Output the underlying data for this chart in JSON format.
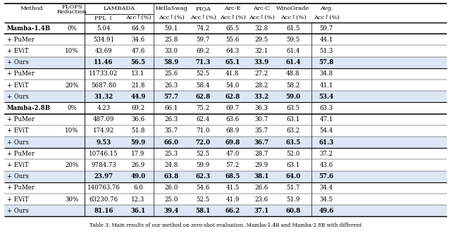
{
  "caption": "Table 3: Main results of our method on zero-shot evaluation. Mamba-1.4B and Mamba-2.8B with different",
  "highlight_color": "#dce6f5",
  "rows": [
    {
      "method": "Mamba-1.4B",
      "reduction": "0%",
      "ppl": "5.04",
      "lacc": "64.9",
      "hella": "59.1",
      "piqa": "74.2",
      "arce": "65.5",
      "arcc": "32.8",
      "wino": "61.5",
      "avg": "59.7",
      "hl": false,
      "baseline": true,
      "grp_mid": false
    },
    {
      "method": "+ PuMer",
      "reduction": "",
      "ppl": "534.91",
      "lacc": "34.6",
      "hella": "25.8",
      "piqa": "59.7",
      "arce": "55.6",
      "arcc": "29.5",
      "wino": "59.5",
      "avg": "44.1",
      "hl": false,
      "baseline": false,
      "grp_mid": false
    },
    {
      "method": "+ EViT",
      "reduction": "10%",
      "ppl": "43.69",
      "lacc": "47.6",
      "hella": "33.0",
      "piqa": "69.2",
      "arce": "64.3",
      "arcc": "32.1",
      "wino": "61.4",
      "avg": "51.3",
      "hl": false,
      "baseline": false,
      "grp_mid": true
    },
    {
      "method": "+ Ours",
      "reduction": "",
      "ppl": "11.46",
      "lacc": "56.5",
      "hella": "58.9",
      "piqa": "71.3",
      "arce": "65.1",
      "arcc": "33.9",
      "wino": "61.4",
      "avg": "57.8",
      "hl": true,
      "baseline": false,
      "grp_mid": false
    },
    {
      "method": "+ PuMer",
      "reduction": "",
      "ppl": "11733.02",
      "lacc": "13.1",
      "hella": "25.6",
      "piqa": "52.5",
      "arce": "41.8",
      "arcc": "27.2",
      "wino": "48.8",
      "avg": "34.8",
      "hl": false,
      "baseline": false,
      "grp_mid": false
    },
    {
      "method": "+ EViT",
      "reduction": "20%",
      "ppl": "5687.80",
      "lacc": "21.8",
      "hella": "26.3",
      "piqa": "58.4",
      "arce": "54.0",
      "arcc": "28.2",
      "wino": "58.2",
      "avg": "41.1",
      "hl": false,
      "baseline": false,
      "grp_mid": true
    },
    {
      "method": "+ Ours",
      "reduction": "",
      "ppl": "31.32",
      "lacc": "44.9",
      "hella": "57.7",
      "piqa": "62.8",
      "arce": "62.8",
      "arcc": "33.2",
      "wino": "59.0",
      "avg": "53.4",
      "hl": true,
      "baseline": false,
      "grp_mid": false
    },
    {
      "method": "Mamba-2.8B",
      "reduction": "0%",
      "ppl": "4.23",
      "lacc": "69.2",
      "hella": "66.1",
      "piqa": "75.2",
      "arce": "69.7",
      "arcc": "36.3",
      "wino": "63.5",
      "avg": "63.3",
      "hl": false,
      "baseline": true,
      "grp_mid": false
    },
    {
      "method": "+ PuMer",
      "reduction": "",
      "ppl": "487.09",
      "lacc": "36.6",
      "hella": "26.3",
      "piqa": "62.4",
      "arce": "63.6",
      "arcc": "30.7",
      "wino": "63.1",
      "avg": "47.1",
      "hl": false,
      "baseline": false,
      "grp_mid": false
    },
    {
      "method": "+ EViT",
      "reduction": "10%",
      "ppl": "174.92",
      "lacc": "51.8",
      "hella": "35.7",
      "piqa": "71.0",
      "arce": "68.9",
      "arcc": "35.7",
      "wino": "63.2",
      "avg": "54.4",
      "hl": false,
      "baseline": false,
      "grp_mid": true
    },
    {
      "method": "+ Ours",
      "reduction": "",
      "ppl": "9.53",
      "lacc": "59.9",
      "hella": "66.0",
      "piqa": "72.0",
      "arce": "69.8",
      "arcc": "36.7",
      "wino": "63.5",
      "avg": "61.3",
      "hl": true,
      "baseline": false,
      "grp_mid": false
    },
    {
      "method": "+ PuMer",
      "reduction": "",
      "ppl": "10746.15",
      "lacc": "17.9",
      "hella": "25.3",
      "piqa": "52.5",
      "arce": "47.0",
      "arcc": "28.7",
      "wino": "52.0",
      "avg": "37.2",
      "hl": false,
      "baseline": false,
      "grp_mid": false
    },
    {
      "method": "+ EViT",
      "reduction": "20%",
      "ppl": "9784.73",
      "lacc": "26.9",
      "hella": "24.8",
      "piqa": "59.9",
      "arce": "57.2",
      "arcc": "29.9",
      "wino": "63.1",
      "avg": "43.6",
      "hl": false,
      "baseline": false,
      "grp_mid": true
    },
    {
      "method": "+ Ours",
      "reduction": "",
      "ppl": "23.97",
      "lacc": "49.0",
      "hella": "63.8",
      "piqa": "62.3",
      "arce": "68.5",
      "arcc": "38.1",
      "wino": "64.0",
      "avg": "57.6",
      "hl": true,
      "baseline": false,
      "grp_mid": false
    },
    {
      "method": "+ PuMer",
      "reduction": "",
      "ppl": "140763.76",
      "lacc": "6.0",
      "hella": "26.0",
      "piqa": "54.6",
      "arce": "41.5",
      "arcc": "26.6",
      "wino": "51.7",
      "avg": "34.4",
      "hl": false,
      "baseline": false,
      "grp_mid": false
    },
    {
      "method": "+ EViT",
      "reduction": "30%",
      "ppl": "63230.76",
      "lacc": "12.3",
      "hella": "25.0",
      "piqa": "52.5",
      "arce": "41.9",
      "arcc": "23.6",
      "wino": "51.9",
      "avg": "34.5",
      "hl": false,
      "baseline": false,
      "grp_mid": true
    },
    {
      "method": "+ Ours",
      "reduction": "",
      "ppl": "81.16",
      "lacc": "36.1",
      "hella": "39.4",
      "piqa": "58.1",
      "arce": "66.2",
      "arcc": "37.1",
      "wino": "60.8",
      "avg": "49.6",
      "hl": true,
      "baseline": false,
      "grp_mid": false
    }
  ]
}
